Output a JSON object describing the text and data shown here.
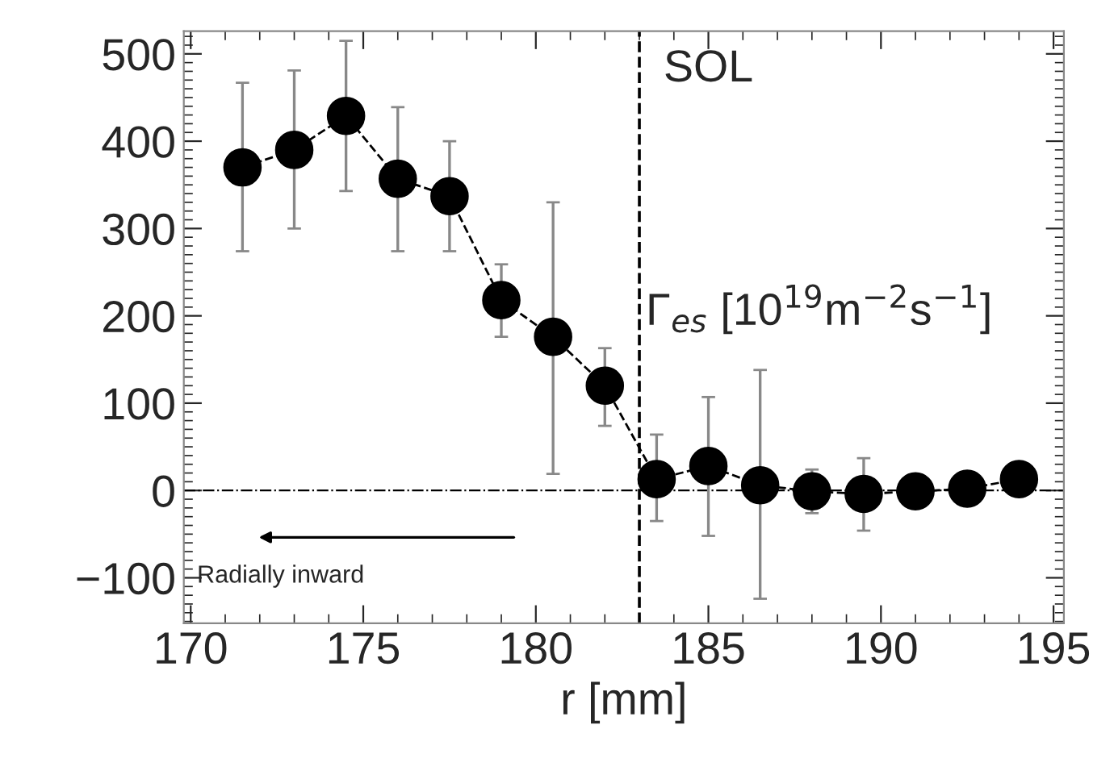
{
  "chart_data": {
    "type": "line",
    "xlabel": "r [mm]",
    "x": [
      171.5,
      173,
      174.5,
      176,
      177.5,
      179,
      180.5,
      182,
      183.5,
      185,
      186.5,
      188,
      189.5,
      191,
      192.5,
      194
    ],
    "series": [
      {
        "color": "#000000",
        "values": [
          370,
          390,
          429,
          357,
          337,
          218,
          176,
          120,
          13,
          28,
          6,
          -1,
          -4,
          -1,
          2,
          13
        ],
        "errors": [
          [
            274,
            467
          ],
          [
            300,
            481
          ],
          [
            343,
            515
          ],
          [
            274,
            439
          ],
          [
            274,
            400
          ],
          [
            176,
            259
          ],
          [
            19,
            330
          ],
          [
            74,
            163
          ],
          [
            -35,
            64
          ],
          [
            -52,
            107
          ],
          [
            -124,
            138
          ],
          [
            -26,
            24
          ],
          [
            -46,
            37
          ],
          null,
          null,
          null
        ]
      }
    ],
    "marker": "circle",
    "line_style": "dashed",
    "grid": false,
    "legend": false,
    "xlim": [
      169.8,
      195.3
    ],
    "xticks": [
      170,
      175,
      180,
      185,
      190,
      195
    ],
    "ylim": [
      -152,
      526
    ],
    "yticks": [
      {
        "value": -100,
        "label": "−100"
      },
      0,
      100,
      200,
      300,
      400,
      500
    ],
    "ref_lines": [
      {
        "axis": "x",
        "value": 183,
        "label": "SOL",
        "line_style": "dashed"
      },
      {
        "axis": "y",
        "value": 0,
        "line_style": "dashdot"
      }
    ],
    "annotations": [
      "Γ$_{es}$ [10$^{19}$m$^{−2}$s$^{−1}$]",
      "Radially inward"
    ]
  }
}
